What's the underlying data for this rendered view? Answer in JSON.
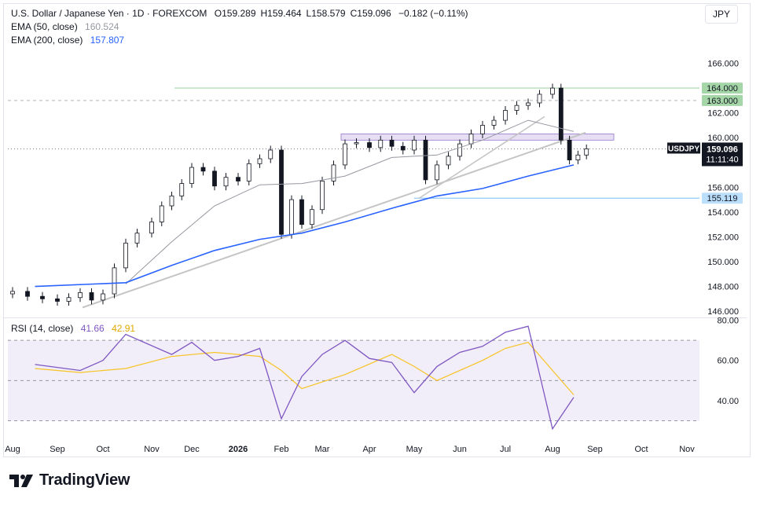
{
  "header": {
    "symbol_line": "U.S. Dollar / Japanese Yen · 1D · FOREXCOM",
    "ohlc": [
      {
        "k": "O",
        "v": "159.289"
      },
      {
        "k": "H",
        "v": "159.464"
      },
      {
        "k": "L",
        "v": "158.579"
      },
      {
        "k": "C",
        "v": "159.096"
      }
    ],
    "change": "−0.182 (−0.11%)",
    "currency_button": "JPY"
  },
  "indicators": {
    "ema50": {
      "label": "EMA (50, close)",
      "value": "160.524",
      "color": "#9598a1"
    },
    "ema200": {
      "label": "EMA (200, close)",
      "value": "157.807",
      "color": "#2962ff"
    },
    "rsi": {
      "label": "RSI (14, close)",
      "value": "41.66",
      "ma_value": "42.91",
      "color": "#7e57c2",
      "ma_color": "#f7c325"
    }
  },
  "price_badges": {
    "symbol": "USDJPY",
    "last": "159.096",
    "countdown": "11:11:40",
    "level_164": "164.000",
    "level_163": "163.000",
    "level_155": "155.119"
  },
  "chart_data": [
    {
      "type": "candlestick",
      "title": "U.S. Dollar / Japanese Yen · 1D · FOREXCOM",
      "x_ticks": [
        "Aug",
        "Sep",
        "Oct",
        "Nov",
        "Dec",
        "2026",
        "Feb",
        "Mar",
        "Apr",
        "May",
        "Jun",
        "Jul",
        "Aug",
        "Sep",
        "Oct",
        "Nov"
      ],
      "y_ticks": [
        "146.000",
        "148.000",
        "150.000",
        "152.000",
        "154.000",
        "156.000",
        "158.000",
        "160.000",
        "162.000",
        "164.000",
        "166.000"
      ],
      "ylim": [
        145.5,
        167.3
      ],
      "series": [
        {
          "name": "USDJPY close (approx. weekly)",
          "points": [
            [
              "Aug",
              147.6
            ],
            [
              "Aug",
              147.2
            ],
            [
              "Aug",
              147.0
            ],
            [
              "Sep",
              146.8
            ],
            [
              "Sep",
              147.1
            ],
            [
              "Sep",
              147.5
            ],
            [
              "Sep",
              146.9
            ],
            [
              "Oct",
              147.4
            ],
            [
              "Oct",
              149.5
            ],
            [
              "Oct",
              151.5
            ],
            [
              "Oct",
              152.3
            ],
            [
              "Nov",
              153.2
            ],
            [
              "Nov",
              154.5
            ],
            [
              "Nov",
              155.3
            ],
            [
              "Nov",
              156.3
            ],
            [
              "Dec",
              157.6
            ],
            [
              "Dec",
              157.3
            ],
            [
              "Dec",
              156.1
            ],
            [
              "Dec",
              156.8
            ],
            [
              "2026",
              156.5
            ],
            [
              "2026",
              157.9
            ],
            [
              "2026",
              158.3
            ],
            [
              "2026",
              159.0
            ],
            [
              "Feb",
              152.2
            ],
            [
              "Feb",
              155.0
            ],
            [
              "Feb",
              153.0
            ],
            [
              "Feb",
              154.2
            ],
            [
              "Mar",
              156.5
            ],
            [
              "Mar",
              157.8
            ],
            [
              "Mar",
              159.5
            ],
            [
              "Mar",
              159.6
            ],
            [
              "Apr",
              159.2
            ],
            [
              "Apr",
              159.8
            ],
            [
              "Apr",
              159.3
            ],
            [
              "Apr",
              159.0
            ],
            [
              "May",
              159.8
            ],
            [
              "May",
              156.6
            ],
            [
              "May",
              157.8
            ],
            [
              "May",
              158.5
            ],
            [
              "Jun",
              159.5
            ],
            [
              "Jun",
              160.3
            ],
            [
              "Jun",
              161.0
            ],
            [
              "Jun",
              161.4
            ],
            [
              "Jul",
              162.2
            ],
            [
              "Jul",
              162.6
            ],
            [
              "Jul",
              162.8
            ],
            [
              "Jul",
              163.5
            ],
            [
              "Aug",
              164.0
            ],
            [
              "Aug",
              159.8
            ],
            [
              "Aug",
              158.2
            ],
            [
              "Aug",
              158.6
            ],
            [
              "Aug",
              159.1
            ]
          ]
        },
        {
          "name": "EMA (50, close)",
          "points": [
            [
              "Oct",
              148.2
            ],
            [
              "Nov",
              151.6
            ],
            [
              "Dec",
              154.5
            ],
            [
              "2026",
              156.2
            ],
            [
              "Feb",
              156.3
            ],
            [
              "Mar",
              156.9
            ],
            [
              "Apr",
              158.4
            ],
            [
              "May",
              158.6
            ],
            [
              "Jun",
              159.8
            ],
            [
              "Jul",
              161.4
            ],
            [
              "Aug",
              160.5
            ]
          ]
        },
        {
          "name": "EMA (200, close)",
          "points": [
            [
              "Aug",
              148.0
            ],
            [
              "Oct",
              148.3
            ],
            [
              "Nov",
              149.7
            ],
            [
              "Dec",
              150.9
            ],
            [
              "2026",
              151.8
            ],
            [
              "Feb",
              152.3
            ],
            [
              "Mar",
              153.2
            ],
            [
              "Apr",
              154.3
            ],
            [
              "May",
              155.3
            ],
            [
              "Jun",
              155.9
            ],
            [
              "Jul",
              156.9
            ],
            [
              "Aug",
              157.8
            ]
          ]
        }
      ],
      "annotations": {
        "horizontal_levels": [
          164.0,
          163.0,
          155.119
        ],
        "resistance_zone": [
          159.8,
          160.3
        ],
        "trendline": [
          [
            "Sep",
            146.3
          ],
          [
            "Aug",
            159.6
          ]
        ],
        "trendline_upper": [
          [
            "May",
            155.1
          ],
          [
            "Jul",
            161.8
          ]
        ]
      }
    },
    {
      "type": "line",
      "title": "RSI (14, close)",
      "y_ticks": [
        "40.00",
        "60.00",
        "80.00"
      ],
      "ylim": [
        22,
        81
      ],
      "bands": [
        30,
        50,
        70
      ],
      "series": [
        {
          "name": "RSI",
          "points": [
            [
              "Aug",
              58
            ],
            [
              "Sep",
              55
            ],
            [
              "Oct",
              60
            ],
            [
              "Oct",
              73
            ],
            [
              "Nov",
              63
            ],
            [
              "Dec",
              69
            ],
            [
              "Dec",
              60
            ],
            [
              "2026",
              62
            ],
            [
              "2026",
              66
            ],
            [
              "Feb",
              31
            ],
            [
              "Feb",
              52
            ],
            [
              "Mar",
              63
            ],
            [
              "Mar",
              70
            ],
            [
              "Apr",
              61
            ],
            [
              "Apr",
              59
            ],
            [
              "May",
              44
            ],
            [
              "May",
              57
            ],
            [
              "Jun",
              64
            ],
            [
              "Jun",
              67
            ],
            [
              "Jul",
              74
            ],
            [
              "Jul",
              77
            ],
            [
              "Aug",
              26
            ],
            [
              "Aug",
              41.66
            ]
          ]
        },
        {
          "name": "RSI-based MA",
          "points": [
            [
              "Aug",
              56
            ],
            [
              "Sep",
              54
            ],
            [
              "Oct",
              56
            ],
            [
              "Nov",
              62
            ],
            [
              "Dec",
              64
            ],
            [
              "2026",
              62
            ],
            [
              "Feb",
              55
            ],
            [
              "Feb",
              46
            ],
            [
              "Mar",
              53
            ],
            [
              "Apr",
              63
            ],
            [
              "May",
              57
            ],
            [
              "May",
              50
            ],
            [
              "Jun",
              60
            ],
            [
              "Jul",
              66
            ],
            [
              "Jul",
              69
            ],
            [
              "Aug",
              55
            ],
            [
              "Aug",
              42.91
            ]
          ]
        }
      ]
    }
  ],
  "brand": {
    "name": "TradingView"
  }
}
